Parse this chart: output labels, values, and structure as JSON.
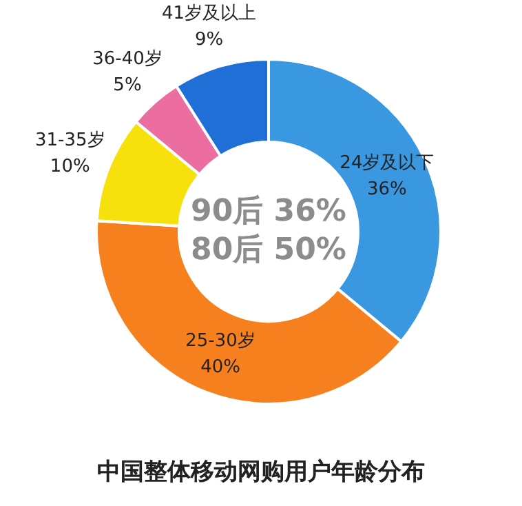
{
  "chart_data": {
    "type": "donut",
    "title": "中国整体移动网购用户年龄分布",
    "categories": [
      "24岁及以下",
      "25-30岁",
      "31-35岁",
      "36-40岁",
      "41岁及以上"
    ],
    "values": [
      36,
      40,
      10,
      5,
      9
    ],
    "value_labels": [
      "36%",
      "40%",
      "10%",
      "5%",
      "9%"
    ],
    "colors": [
      "#3a98e0",
      "#f7801e",
      "#f7e10c",
      "#ec6da0",
      "#1f6fd6"
    ],
    "annotations": [
      "90后 36%",
      "80后 50%"
    ],
    "legend": false
  }
}
